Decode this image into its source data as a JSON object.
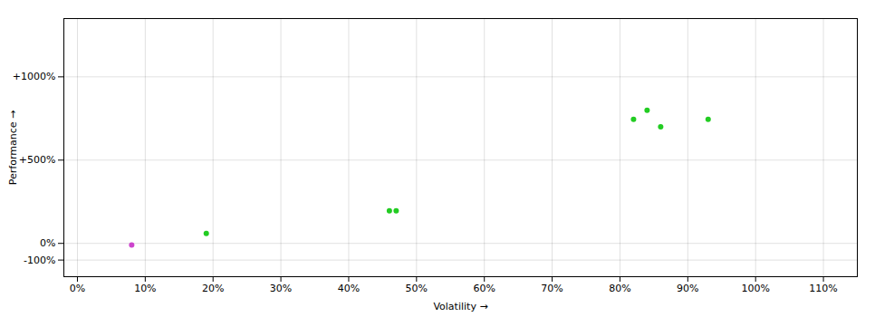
{
  "chart_data": {
    "type": "scatter",
    "x": [
      8,
      19,
      46,
      47,
      82,
      84,
      86,
      93
    ],
    "values": [
      -10,
      60,
      195,
      195,
      745,
      800,
      700,
      745
    ],
    "colors": [
      "#cc44cc",
      "#22cc22",
      "#22cc22",
      "#22cc22",
      "#22cc22",
      "#22cc22",
      "#22cc22",
      "#22cc22"
    ],
    "xlabel": "Volatility",
    "ylabel": "Performance",
    "xlim": [
      -2,
      115
    ],
    "ylim": [
      -200,
      1350
    ],
    "xticks": [
      {
        "value": 0,
        "label": "0%"
      },
      {
        "value": 10,
        "label": "10%"
      },
      {
        "value": 20,
        "label": "20%"
      },
      {
        "value": 30,
        "label": "30%"
      },
      {
        "value": 40,
        "label": "40%"
      },
      {
        "value": 50,
        "label": "50%"
      },
      {
        "value": 60,
        "label": "60%"
      },
      {
        "value": 70,
        "label": "70%"
      },
      {
        "value": 80,
        "label": "80%"
      },
      {
        "value": 90,
        "label": "90%"
      },
      {
        "value": 100,
        "label": "100%"
      },
      {
        "value": 110,
        "label": "110%"
      }
    ],
    "yticks": [
      {
        "value": -100,
        "label": "-100%"
      },
      {
        "value": 0,
        "label": "0%"
      },
      {
        "value": 500,
        "label": "+500%"
      },
      {
        "value": 1000,
        "label": "+1000%"
      }
    ],
    "grid": true
  }
}
